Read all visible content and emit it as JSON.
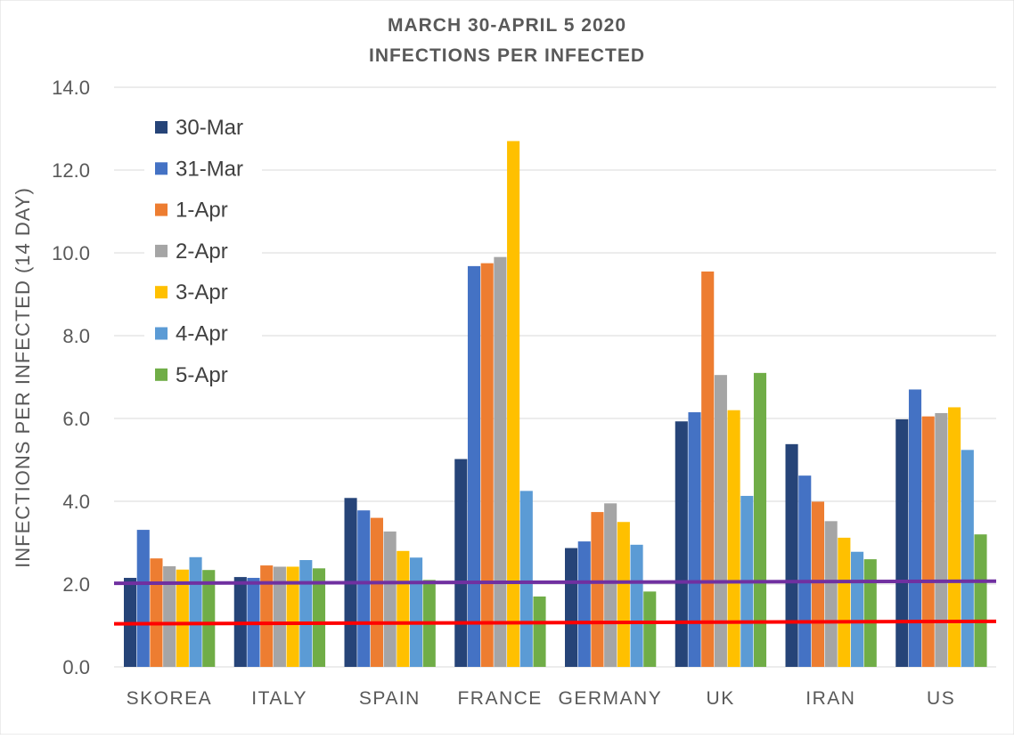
{
  "chart_data": {
    "type": "bar",
    "title": "MARCH 30-APRIL 5 2020",
    "subtitle": "INFECTIONS PER INFECTED",
    "xlabel": "",
    "ylabel": "INFECTIONS PER INFECTED (14 DAY)",
    "ylim": [
      0,
      14
    ],
    "yticks": [
      "0.0",
      "2.0",
      "4.0",
      "6.0",
      "8.0",
      "10.0",
      "12.0",
      "14.0"
    ],
    "grid": true,
    "legend_position": "top-left",
    "categories": [
      "SKOREA",
      "ITALY",
      "SPAIN",
      "FRANCE",
      "GERMANY",
      "UK",
      "IRAN",
      "US"
    ],
    "series": [
      {
        "name": "30-Mar",
        "color": "#264478",
        "values": [
          2.15,
          2.17,
          4.08,
          5.02,
          2.87,
          5.93,
          5.38,
          5.98
        ]
      },
      {
        "name": "31-Mar",
        "color": "#4472C4",
        "values": [
          3.31,
          2.15,
          3.78,
          9.68,
          3.03,
          6.15,
          4.62,
          6.7
        ]
      },
      {
        "name": "1-Apr",
        "color": "#ED7D31",
        "values": [
          2.62,
          2.45,
          3.6,
          9.75,
          3.74,
          9.55,
          3.99,
          6.05
        ]
      },
      {
        "name": "2-Apr",
        "color": "#A5A5A5",
        "values": [
          2.43,
          2.42,
          3.27,
          9.9,
          3.95,
          7.05,
          3.52,
          6.13
        ]
      },
      {
        "name": "3-Apr",
        "color": "#FFC000",
        "values": [
          2.35,
          2.42,
          2.8,
          12.7,
          3.5,
          6.2,
          3.12,
          6.27
        ]
      },
      {
        "name": "4-Apr",
        "color": "#5B9BD5",
        "values": [
          2.65,
          2.58,
          2.64,
          4.25,
          2.95,
          4.13,
          2.78,
          5.24
        ]
      },
      {
        "name": "5-Apr",
        "color": "#70AD47",
        "values": [
          2.34,
          2.38,
          2.1,
          1.7,
          1.82,
          7.1,
          2.6,
          3.2
        ]
      }
    ],
    "reference_lines": [
      {
        "color": "#7030A0",
        "y_start": 2.02,
        "y_end": 2.07
      },
      {
        "color": "#FF0000",
        "y_start": 1.04,
        "y_end": 1.1
      }
    ]
  }
}
